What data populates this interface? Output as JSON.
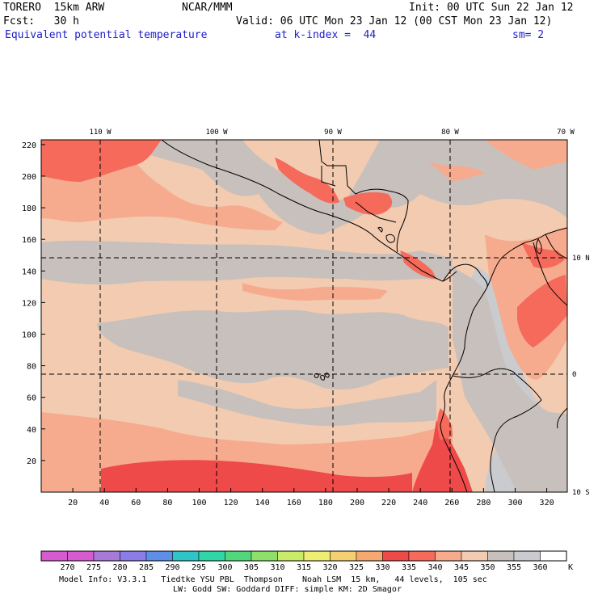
{
  "header": {
    "model": "TORERO  15km ARW",
    "center": "NCAR/MMM",
    "init": "Init: 00 UTC Sun 22 Jan 12",
    "fcst": "Fcst:   30 h",
    "valid": "Valid: 06 UTC Mon 23 Jan 12 (00 CST Mon 23 Jan 12)",
    "field": "Equivalent potential temperature",
    "level": "at k-index =  44",
    "smooth": "sm= 2"
  },
  "map": {
    "lon_labels": [
      "110 W",
      "100 W",
      "90 W",
      "80 W",
      "70 W"
    ],
    "lat_labels": [
      "10 N",
      "0",
      "10 S"
    ],
    "x_ticks": [
      "20",
      "40",
      "60",
      "80",
      "100",
      "120",
      "140",
      "160",
      "180",
      "200",
      "220",
      "240",
      "260",
      "280",
      "300",
      "320"
    ],
    "y_ticks": [
      "20",
      "40",
      "60",
      "80",
      "100",
      "120",
      "140",
      "160",
      "180",
      "200",
      "220"
    ],
    "colors": {
      "c330": "#ee4a4a",
      "c335": "#f56a5a",
      "c340": "#f6ab8e",
      "c345": "#f2cbb0",
      "c350": "#c8c0bc",
      "c355": "#c9cbce",
      "coast": "#000000",
      "grid": "#000000"
    }
  },
  "colorbar": {
    "labels": [
      "270",
      "275",
      "280",
      "285",
      "290",
      "295",
      "300",
      "305",
      "310",
      "315",
      "320",
      "325",
      "330",
      "335",
      "340",
      "345",
      "350",
      "355",
      "360"
    ],
    "unit": "K",
    "colors": [
      "#d85ad0",
      "#a87ad8",
      "#8c7ce8",
      "#5e8ee8",
      "#2fc4c8",
      "#2ed6a8",
      "#52d87a",
      "#8ee06a",
      "#c8ec6a",
      "#eeee72",
      "#f4d070",
      "#f6a870",
      "#ee4a4a",
      "#f56a5a",
      "#f6ab8e",
      "#f2cbb0",
      "#c8c0bc",
      "#c9cbce",
      "#ffffff"
    ]
  },
  "footer": {
    "line1": "Model Info: V3.3.1   Tiedtke YSU PBL  Thompson    Noah LSM  15 km,   44 levels,  105 sec",
    "line2": "LW: Godd SW: Goddard DIFF: simple KM: 2D Smagor"
  }
}
